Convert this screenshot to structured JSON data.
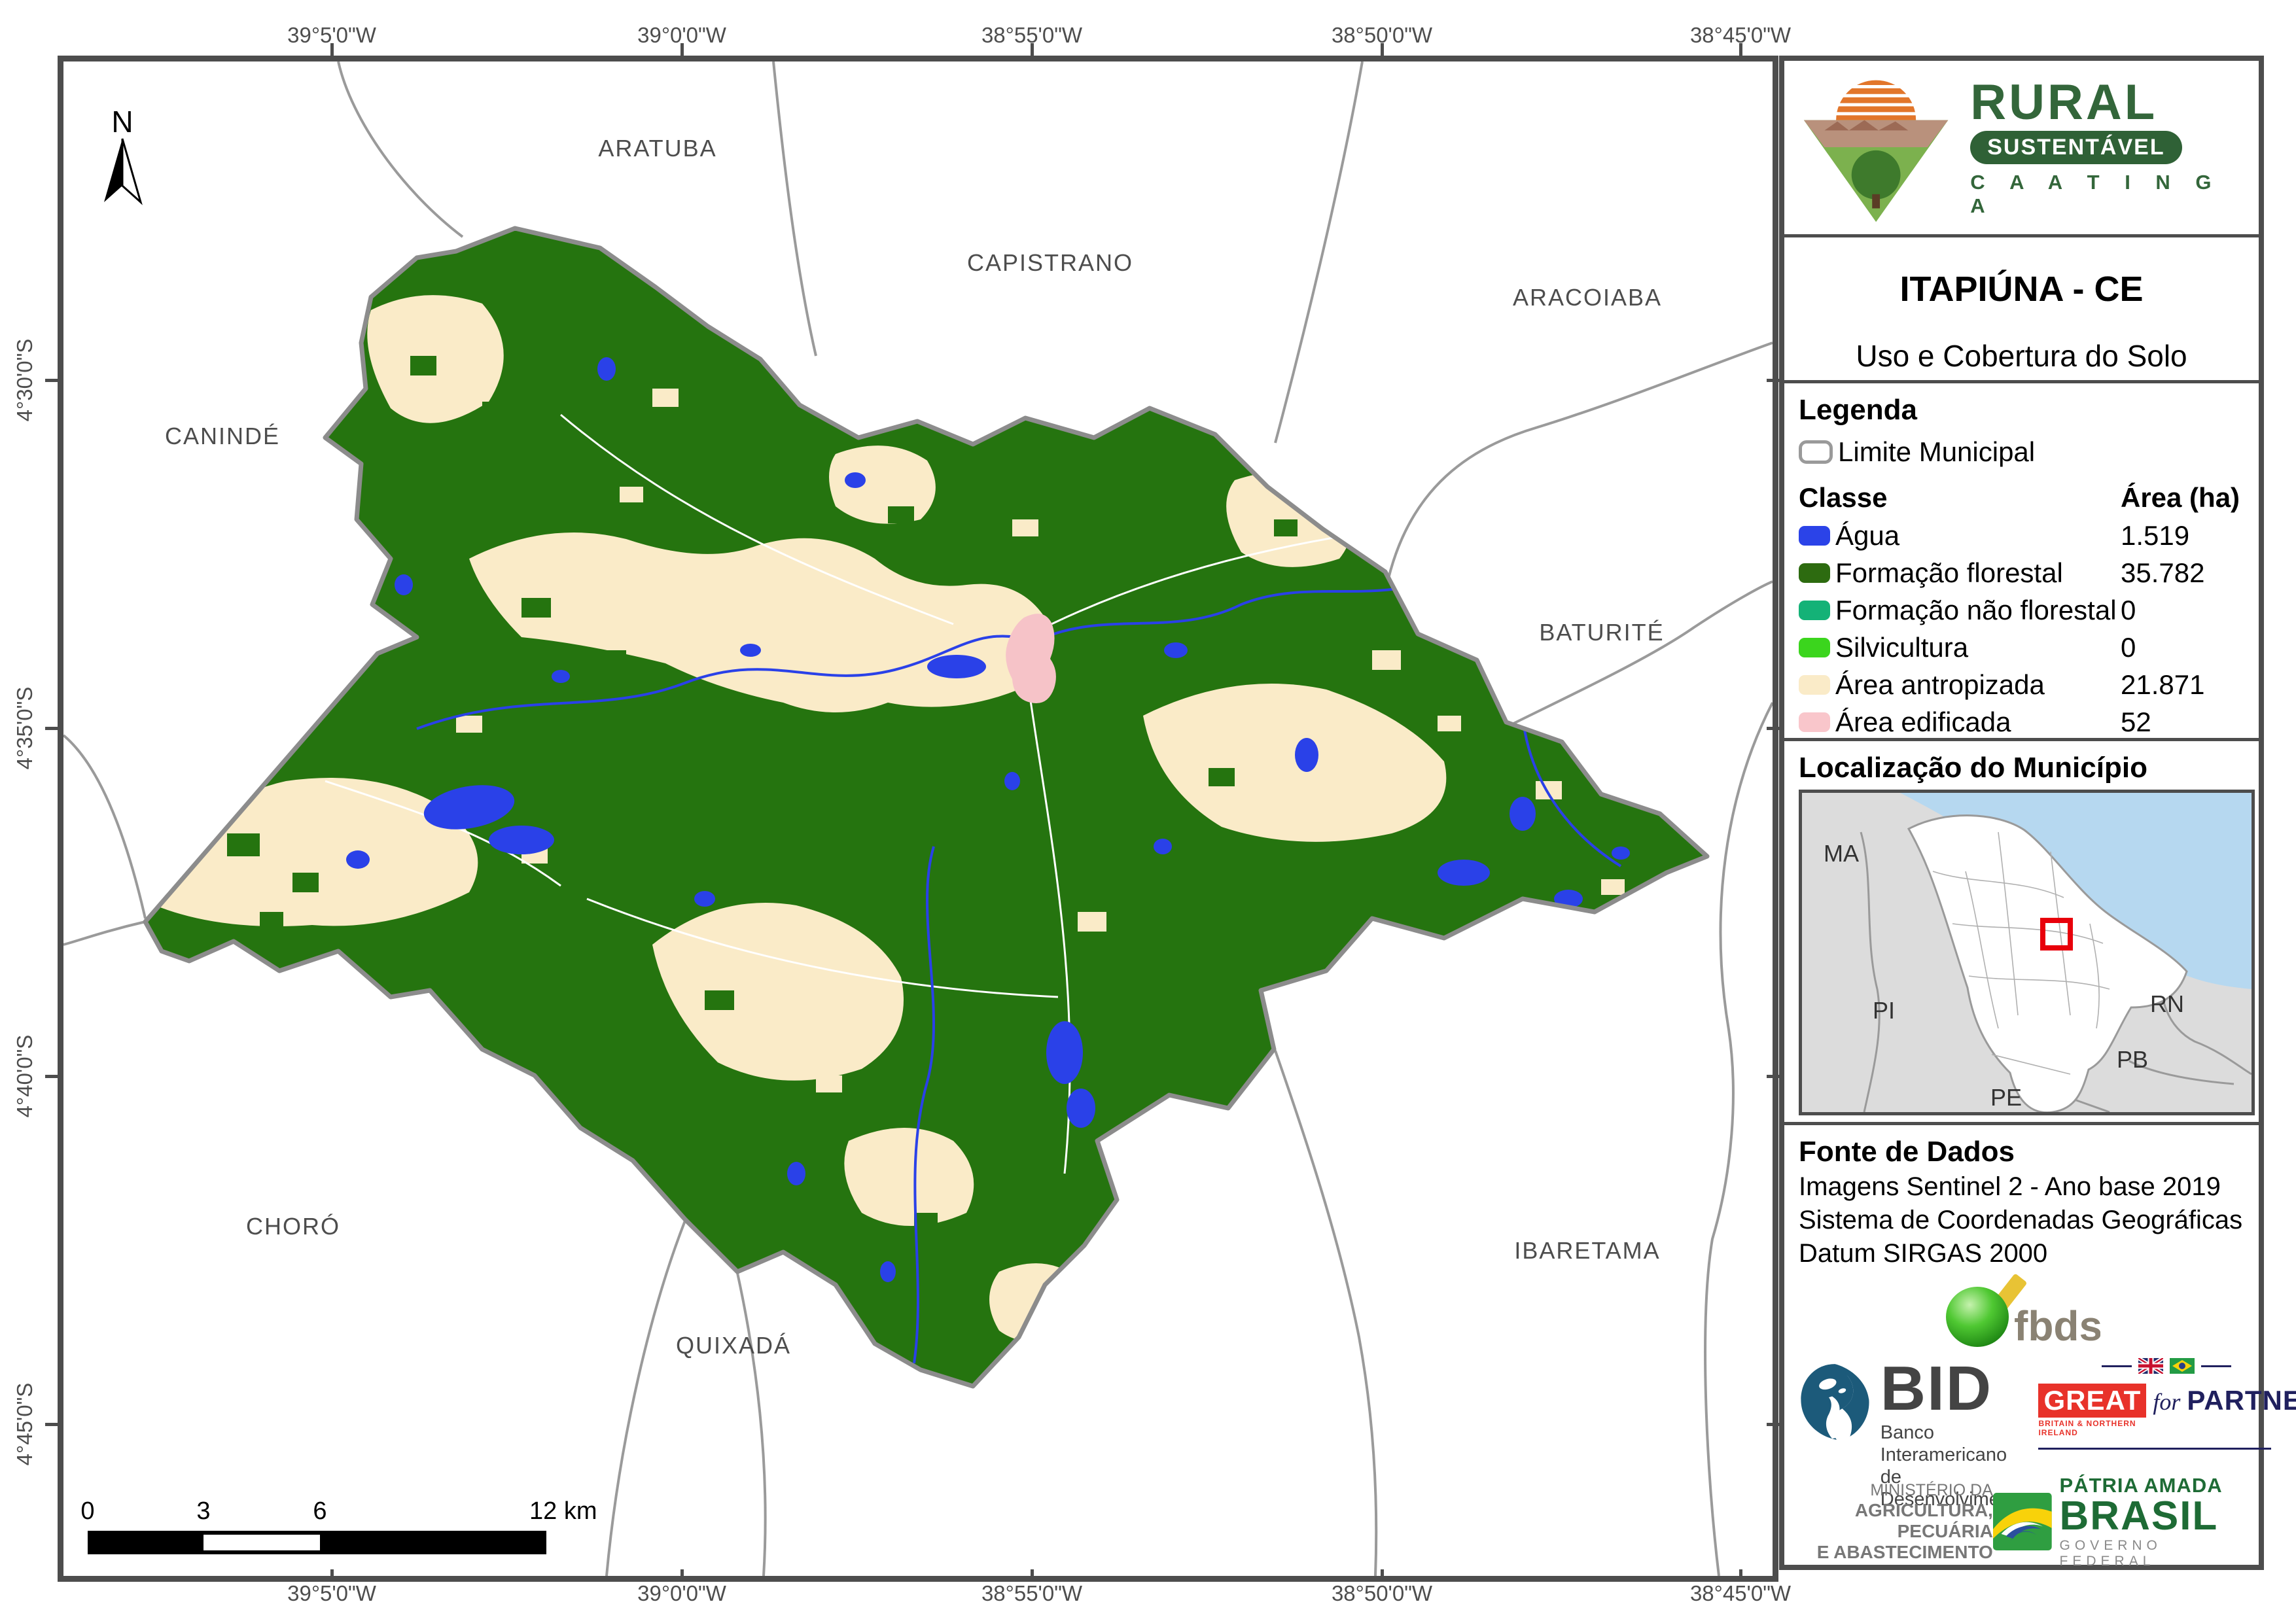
{
  "map": {
    "north_label": "N",
    "top_coords": [
      "39°5'0\"W",
      "39°0'0\"W",
      "38°55'0\"W",
      "38°50'0\"W",
      "38°45'0\"W"
    ],
    "bottom_coords": [
      "39°5'0\"W",
      "39°0'0\"W",
      "38°55'0\"W",
      "38°50'0\"W",
      "38°45'0\"W"
    ],
    "left_coords": [
      "4°30'0\"S",
      "4°35'0\"S",
      "4°40'0\"S",
      "4°45'0\"S"
    ],
    "neighbors": [
      "ARATUBA",
      "CAPISTRANO",
      "ARACOIABA",
      "CANINDÉ",
      "BATURITÉ",
      "CHORÓ",
      "QUIXADÁ",
      "IBARETAMA"
    ],
    "scalebar": {
      "labels": [
        "0",
        "3",
        "6",
        "12 km"
      ]
    },
    "colors": {
      "water": "#2a41e8",
      "forest": "#25740f",
      "anthropized": "#faebc8",
      "built": "#f6c3c8",
      "boundary": "#8c8c8c"
    }
  },
  "panel": {
    "logo": {
      "line1": "RURAL",
      "line2": "SUSTENTÁVEL",
      "line3": "C A A T I N G A"
    },
    "title": "ITAPIÚNA - CE",
    "subtitle": "Uso e Cobertura do Solo",
    "legend": {
      "heading": "Legenda",
      "limite_label": "Limite Municipal",
      "col_class": "Classe",
      "col_area": "Área (ha)",
      "items": [
        {
          "label": "Água",
          "area": "1.519",
          "color": "#2b43e8"
        },
        {
          "label": "Formação florestal",
          "area": "35.782",
          "color": "#2d6b10"
        },
        {
          "label": "Formação não florestal",
          "area": "0",
          "color": "#14b277"
        },
        {
          "label": "Silvicultura",
          "area": "0",
          "color": "#3bd51d"
        },
        {
          "label": "Área antropizada",
          "area": "21.871",
          "color": "#faebc8"
        },
        {
          "label": "Área edificada",
          "area": "52",
          "color": "#f9c6cb"
        }
      ]
    },
    "location": {
      "heading": "Localização do Município",
      "states": [
        "MA",
        "PI",
        "RN",
        "PB",
        "PE"
      ]
    },
    "source": {
      "heading": "Fonte de Dados",
      "lines": [
        "Imagens Sentinel 2 - Ano base 2019",
        "Sistema de Coordenadas Geográficas",
        "Datum SIRGAS 2000"
      ]
    },
    "logos": {
      "fbds": "fbds",
      "bid": "BID",
      "bid_sub1": "Banco Interamericano",
      "bid_sub2": "de Desenvolvimento",
      "great": "GREAT",
      "great_sub": "BRITAIN & NORTHERN IRELAND",
      "for_word": "for",
      "partnership": "PARTNERSHIP",
      "mapa_l1": "MINISTÉRIO DA",
      "mapa_l2": "AGRICULTURA, PECUÁRIA",
      "mapa_l3": "E ABASTECIMENTO",
      "brasil_l1": "PÁTRIA AMADA",
      "brasil_l2": "BRASIL",
      "brasil_l3": "GOVERNO FEDERAL"
    }
  }
}
